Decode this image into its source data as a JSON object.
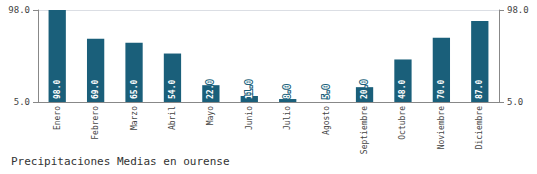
{
  "chart_data": {
    "type": "bar",
    "title": "Precipitaciones Medias en ourense",
    "categories": [
      "Enero",
      "Febrero",
      "Marzo",
      "Abril",
      "Mayo",
      "Junio",
      "Julio",
      "Agosto",
      "Septiembre",
      "Octubre",
      "Noviembre",
      "Diciembre"
    ],
    "values": [
      98.0,
      69.0,
      65.0,
      54.0,
      22.0,
      11.0,
      8.0,
      5.0,
      20.0,
      48.0,
      70.0,
      87.0
    ],
    "value_labels": [
      "98.0",
      "69.0",
      "65.0",
      "54.0",
      "22.0",
      "11.0",
      "8.0",
      "5.0",
      "20.0",
      "48.0",
      "70.0",
      "87.0"
    ],
    "data_labels": true,
    "color": "#1a5f7a",
    "ylim": [
      5.0,
      98.0
    ],
    "yticks": [
      {
        "value": 5.0,
        "label": "5.0"
      },
      {
        "value": 98.0,
        "label": "98.0"
      }
    ],
    "y2lim": [
      5.0,
      98.0
    ],
    "y2ticks": [
      {
        "value": 5.0,
        "label": "5.0"
      },
      {
        "value": 98.0,
        "label": "98.0"
      }
    ],
    "grid": true
  }
}
